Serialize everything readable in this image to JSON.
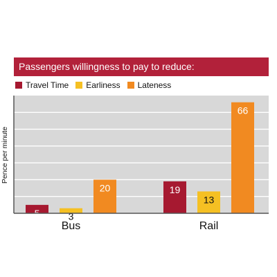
{
  "chart_data": {
    "type": "bar",
    "title": "Passengers willingness to pay to reduce:",
    "xlabel": "",
    "ylabel": "Pence per minute",
    "categories": [
      "Bus",
      "Rail"
    ],
    "series": [
      {
        "name": "Travel Time",
        "color": "#a61930",
        "values": [
          5,
          19
        ]
      },
      {
        "name": "Earliness",
        "color": "#f5c023",
        "values": [
          3,
          13
        ]
      },
      {
        "name": "Lateness",
        "color": "#f18a21",
        "values": [
          20,
          66
        ]
      }
    ],
    "ylim": [
      0,
      70
    ],
    "grid": true,
    "legend": "top-left",
    "colors": {
      "title_bar": "#b2213a",
      "plot_background": "#d8d8d8",
      "gridline": "#ffffff",
      "axis": "#555555"
    }
  }
}
